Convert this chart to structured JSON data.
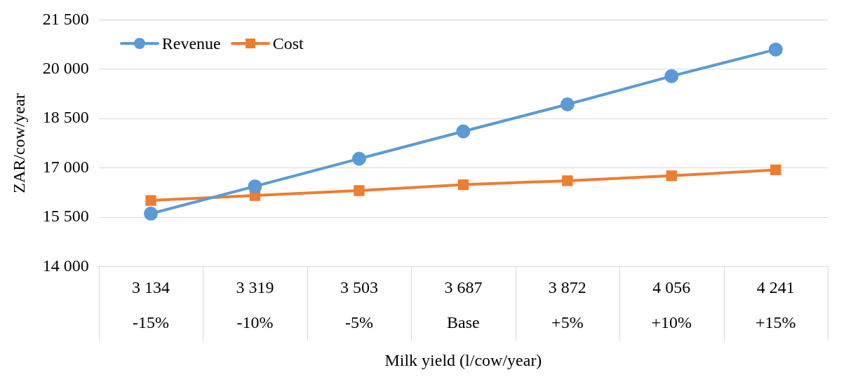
{
  "chart_data": {
    "type": "line",
    "xlabel": "Milk yield (l/cow/year)",
    "ylabel": "ZAR/cow/year",
    "categories": [
      "3 134\n-15%",
      "3 319\n-10%",
      "3 503\n-5%",
      "3 687\nBase",
      "3 872\n+5%",
      "4 056\n+10%",
      "4 241\n+15%"
    ],
    "series": [
      {
        "name": "Revenue",
        "color": "#5b9bd5",
        "marker": "circle",
        "values": [
          15610,
          16440,
          17280,
          18110,
          18930,
          19790,
          20600
        ]
      },
      {
        "name": "Cost",
        "color": "#ed7d31",
        "marker": "square",
        "values": [
          16010,
          16160,
          16310,
          16490,
          16610,
          16760,
          16940
        ]
      }
    ],
    "ylim": [
      14000,
      21500
    ],
    "yticks": [
      {
        "value": 14000,
        "label": "14 000"
      },
      {
        "value": 15500,
        "label": "15 500"
      },
      {
        "value": 17000,
        "label": "17 000"
      },
      {
        "value": 18500,
        "label": "18 500"
      },
      {
        "value": 20000,
        "label": "20 000"
      },
      {
        "value": 21500,
        "label": "21 500"
      }
    ],
    "grid": "y",
    "legend": "top left"
  }
}
